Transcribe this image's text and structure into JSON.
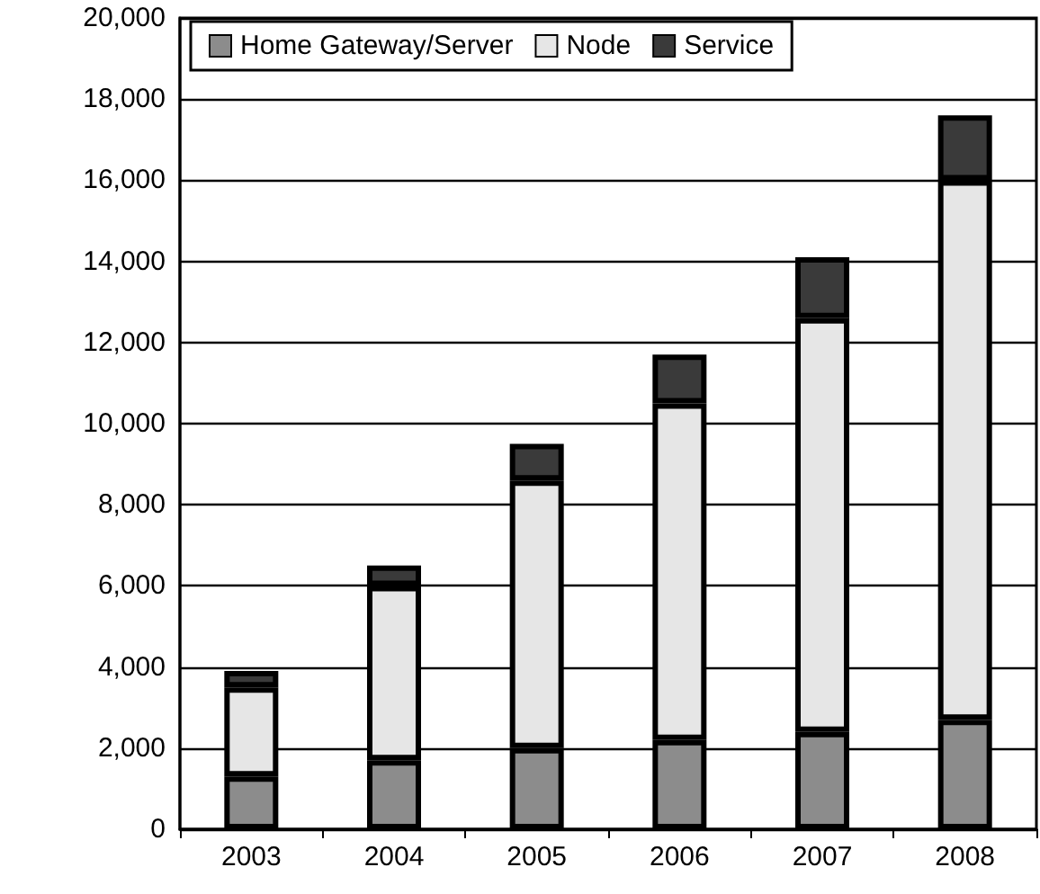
{
  "chart_data": {
    "type": "bar",
    "stacked": true,
    "categories": [
      "2003",
      "2004",
      "2005",
      "2006",
      "2007",
      "2008"
    ],
    "series": [
      {
        "name": "Home Gateway/Server",
        "color": "#8c8c8c",
        "values": [
          1300,
          1700,
          2000,
          2200,
          2400,
          2700
        ]
      },
      {
        "name": "Node",
        "color": "#e6e6e6",
        "values": [
          2200,
          4300,
          6600,
          8300,
          10200,
          13300
        ]
      },
      {
        "name": "Service",
        "color": "#3a3a3a",
        "values": [
          400,
          500,
          900,
          1200,
          1500,
          1600
        ]
      }
    ],
    "ylim": [
      0,
      20000
    ],
    "yticks": [
      0,
      {
        "value": 2000,
        "label": "2,000"
      },
      {
        "value": 4000,
        "label": "4,000"
      },
      {
        "value": 6000,
        "label": "6,000"
      },
      {
        "value": 8000,
        "label": "8,000"
      },
      {
        "value": 10000,
        "label": "10,000"
      },
      {
        "value": 12000,
        "label": "12,000"
      },
      {
        "value": 14000,
        "label": "14,000"
      },
      {
        "value": 16000,
        "label": "16,000"
      },
      {
        "value": 18000,
        "label": "18,000"
      },
      {
        "value": 20000,
        "label": "20,000"
      }
    ],
    "grid": "y",
    "legend": "top"
  }
}
